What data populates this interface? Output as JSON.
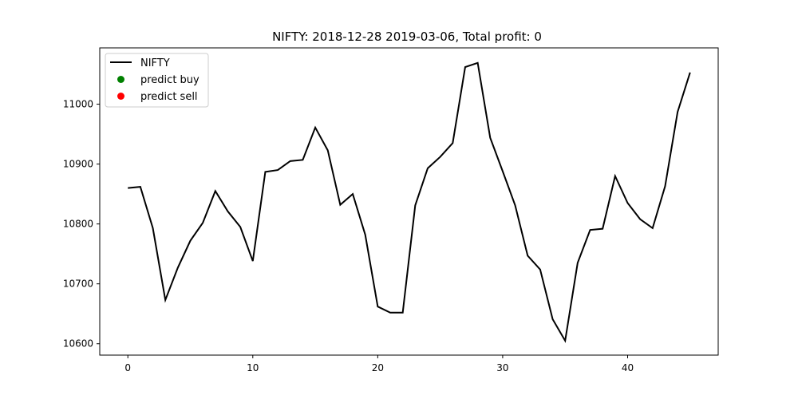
{
  "chart_data": {
    "type": "line",
    "title": "NIFTY: 2018-12-28 2019-03-06, Total profit: 0",
    "xlabel": "",
    "ylabel": "",
    "xlim": [
      -2.25,
      47.25
    ],
    "ylim": [
      10581,
      11094
    ],
    "x_ticks": [
      0,
      10,
      20,
      30,
      40
    ],
    "y_ticks": [
      10600,
      10700,
      10800,
      10900,
      11000
    ],
    "grid": false,
    "legend_position": "top-left",
    "series": [
      {
        "name": "NIFTY",
        "color": "#000000",
        "x": [
          0,
          1,
          2,
          3,
          4,
          5,
          6,
          7,
          8,
          9,
          10,
          11,
          12,
          13,
          14,
          15,
          16,
          17,
          18,
          19,
          20,
          21,
          22,
          23,
          24,
          25,
          26,
          27,
          28,
          29,
          30,
          31,
          32,
          33,
          34,
          35,
          36,
          37,
          38,
          39,
          40,
          41,
          42,
          43,
          44,
          45
        ],
        "values": [
          10860,
          10862,
          10793,
          10673,
          10727,
          10772,
          10802,
          10855,
          10821,
          10795,
          10738,
          10887,
          10890,
          10905,
          10907,
          10961,
          10923,
          10832,
          10850,
          10782,
          10662,
          10652,
          10652,
          10831,
          10893,
          10912,
          10935,
          11062,
          11069,
          10944,
          10888,
          10831,
          10747,
          10724,
          10641,
          10605,
          10735,
          10790,
          10792,
          10880,
          10835,
          10808,
          10793,
          10863,
          10987,
          11053
        ]
      },
      {
        "name": "predict buy",
        "color": "#008000",
        "x": [],
        "values": []
      },
      {
        "name": "predict sell",
        "color": "#ff0000",
        "x": [],
        "values": []
      }
    ]
  }
}
